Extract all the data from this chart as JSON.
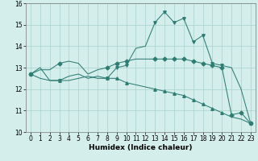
{
  "xlabel": "Humidex (Indice chaleur)",
  "xlim": [
    -0.5,
    23.5
  ],
  "ylim": [
    10,
    16
  ],
  "yticks": [
    10,
    11,
    12,
    13,
    14,
    15,
    16
  ],
  "xticks": [
    0,
    1,
    2,
    3,
    4,
    5,
    6,
    7,
    8,
    9,
    10,
    11,
    12,
    13,
    14,
    15,
    16,
    17,
    18,
    19,
    20,
    21,
    22,
    23
  ],
  "bg_color": "#d4eeec",
  "grid_color": "#a8d0cc",
  "line_color": "#2e7d72",
  "series1": [
    12.7,
    13.0,
    12.4,
    12.4,
    12.6,
    12.7,
    12.5,
    12.6,
    12.5,
    13.0,
    13.1,
    13.9,
    14.0,
    15.1,
    15.6,
    15.1,
    15.3,
    14.2,
    14.5,
    13.2,
    13.1,
    13.0,
    12.0,
    10.4
  ],
  "series2": [
    12.7,
    12.9,
    12.9,
    13.2,
    13.3,
    13.2,
    12.7,
    12.9,
    13.0,
    13.2,
    13.3,
    13.4,
    13.4,
    13.4,
    13.4,
    13.4,
    13.4,
    13.3,
    13.2,
    13.1,
    13.0,
    10.8,
    10.9,
    10.4
  ],
  "series3": [
    12.7,
    12.5,
    12.4,
    12.4,
    12.4,
    12.5,
    12.6,
    12.5,
    12.5,
    12.5,
    12.3,
    12.2,
    12.1,
    12.0,
    11.9,
    11.8,
    11.7,
    11.5,
    11.3,
    11.1,
    10.9,
    10.7,
    10.6,
    10.4
  ],
  "marker_indices_s1": [
    0,
    3,
    8,
    9,
    10,
    13,
    14,
    15,
    16,
    17,
    18,
    19,
    20,
    23
  ],
  "marker_indices_s2": [
    0,
    3,
    8,
    9,
    10,
    13,
    14,
    15,
    16,
    17,
    18,
    19,
    20,
    21,
    22,
    23
  ],
  "marker_indices_s3": [
    0,
    3,
    8,
    9,
    10,
    13,
    14,
    15,
    16,
    17,
    18,
    19,
    20,
    23
  ],
  "tick_fontsize": 5.5,
  "xlabel_fontsize": 6.5,
  "linewidth": 0.75,
  "markersize": 2.5
}
